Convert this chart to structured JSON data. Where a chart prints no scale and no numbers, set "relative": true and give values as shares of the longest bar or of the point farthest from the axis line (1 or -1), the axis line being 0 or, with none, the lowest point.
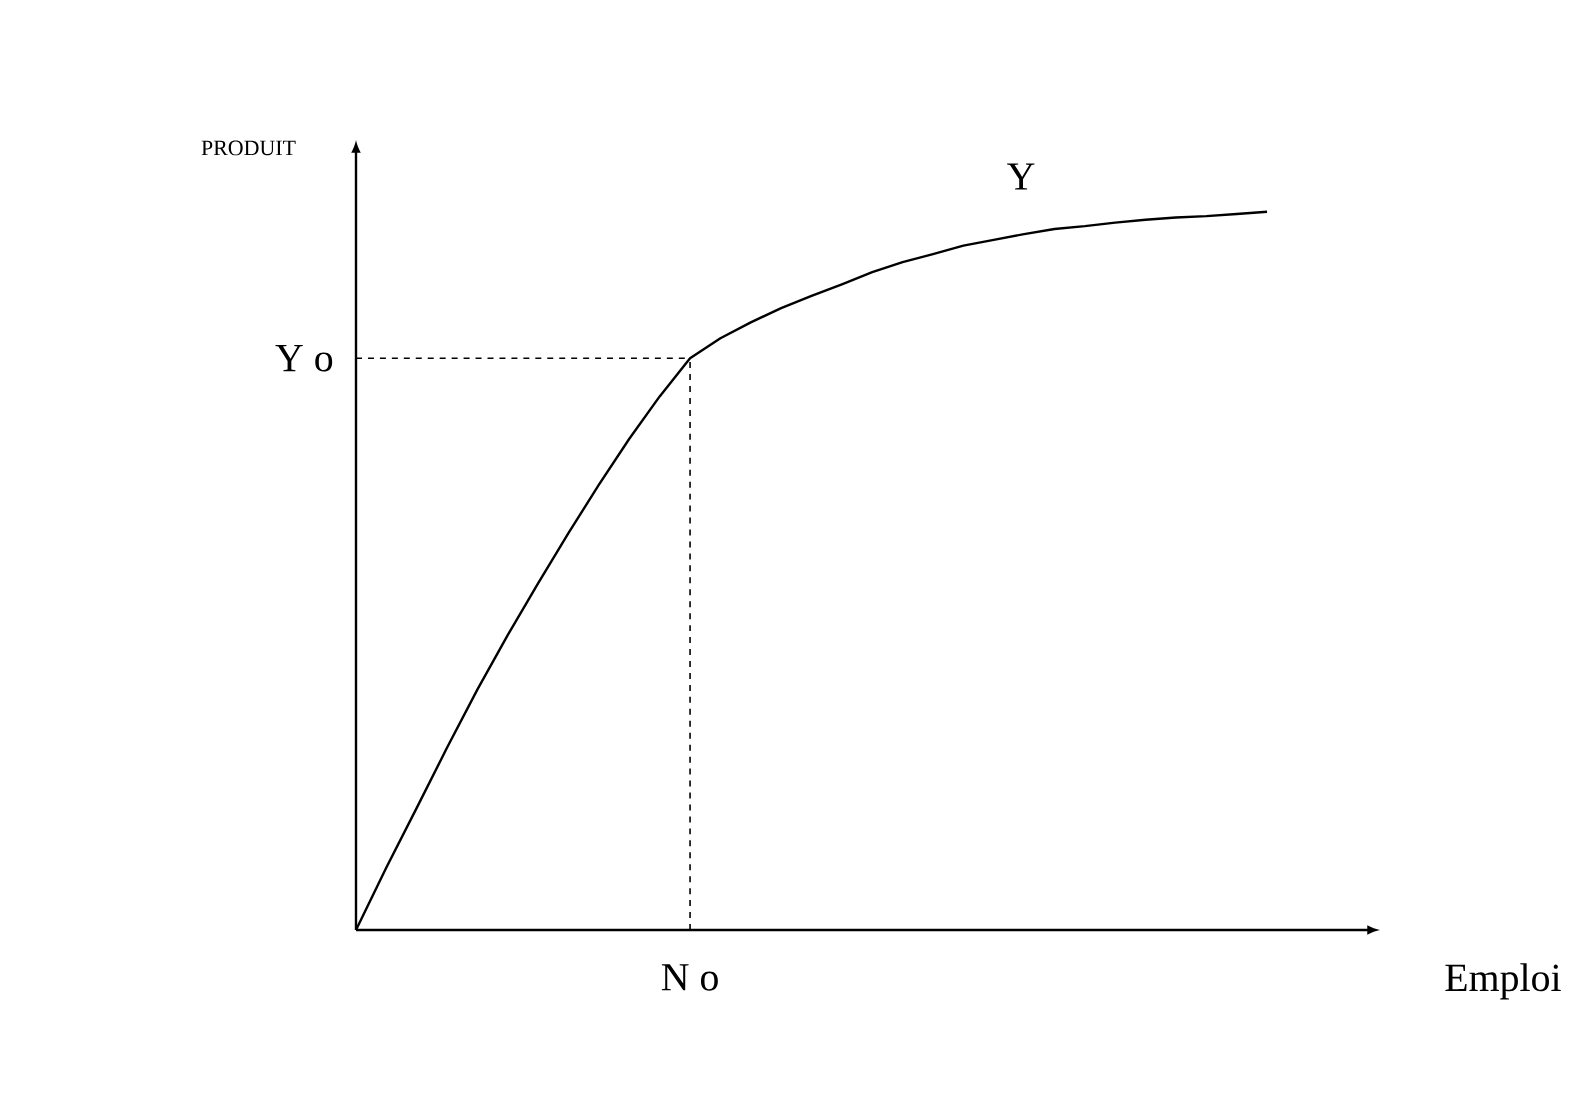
{
  "chart_data": {
    "type": "line",
    "relative": true,
    "xlabel": "Emploi",
    "ylabel": "PRODUIT",
    "categories": [
      null,
      null,
      null,
      null,
      null,
      null,
      null,
      null,
      null,
      null,
      null,
      null,
      null,
      null,
      null,
      null,
      null,
      null,
      null,
      null,
      null,
      null,
      null,
      null,
      null,
      null,
      null,
      null,
      null,
      null,
      null
    ],
    "series": [
      {
        "color": "#000000",
        "values": [
          0,
          0.087,
          0.17,
          0.254,
          0.335,
          0.411,
          0.483,
          0.553,
          0.62,
          0.684,
          0.743,
          0.796,
          0.824,
          0.846,
          0.866,
          0.883,
          0.899,
          0.916,
          0.93,
          0.941,
          0.953,
          0.961,
          0.969,
          0.976,
          0.98,
          0.985,
          0.989,
          0.992,
          0.994,
          0.997,
          1.0
        ]
      }
    ],
    "ref_lines": [
      {
        "axis": "y",
        "value": 0.796,
        "label": "Y o",
        "line_style": "dashed"
      }
    ],
    "annotations": [
      "Y",
      "N o"
    ]
  }
}
